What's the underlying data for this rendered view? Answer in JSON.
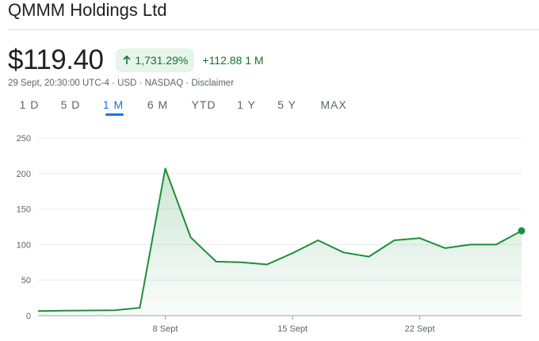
{
  "header": {
    "title": "QMMM Holdings Ltd"
  },
  "quote": {
    "price": "$119.40",
    "percent_change": "1,731.29%",
    "change": "+112.88 1 M",
    "meta": "29 Sept, 20:30:00 UTC-4 · USD · NASDAQ · Disclaimer",
    "accent_color": "#137333",
    "badge_color": "#e6f4ea"
  },
  "tabs": [
    {
      "label": "1 D"
    },
    {
      "label": "5 D"
    },
    {
      "label": "1 M",
      "active": true
    },
    {
      "label": "6 M"
    },
    {
      "label": "YTD"
    },
    {
      "label": "1 Y"
    },
    {
      "label": "5 Y"
    },
    {
      "label": "MAX"
    }
  ],
  "chart_data": {
    "type": "area",
    "title": "",
    "xlabel": "",
    "ylabel": "",
    "x_ticks": [
      "8 Sept",
      "15 Sept",
      "22 Sept"
    ],
    "y_ticks": [
      0,
      50,
      100,
      150,
      200,
      250
    ],
    "ylim": [
      0,
      250
    ],
    "grid": true,
    "line_color": "#1e8e3e",
    "series": [
      {
        "x": [
          "29 Aug",
          "2 Sept",
          "3 Sept",
          "4 Sept",
          "5 Sept",
          "8 Sept",
          "9 Sept",
          "10 Sept",
          "11 Sept",
          "12 Sept",
          "15 Sept",
          "16 Sept",
          "17 Sept",
          "18 Sept",
          "19 Sept",
          "22 Sept",
          "23 Sept",
          "24 Sept",
          "25 Sept",
          "26 Sept"
        ],
        "values": [
          6.52,
          7,
          7.2,
          7.5,
          11,
          207,
          110,
          76,
          75,
          72,
          88,
          106,
          89,
          83,
          106,
          109,
          95,
          100,
          100,
          119.4
        ]
      }
    ]
  }
}
